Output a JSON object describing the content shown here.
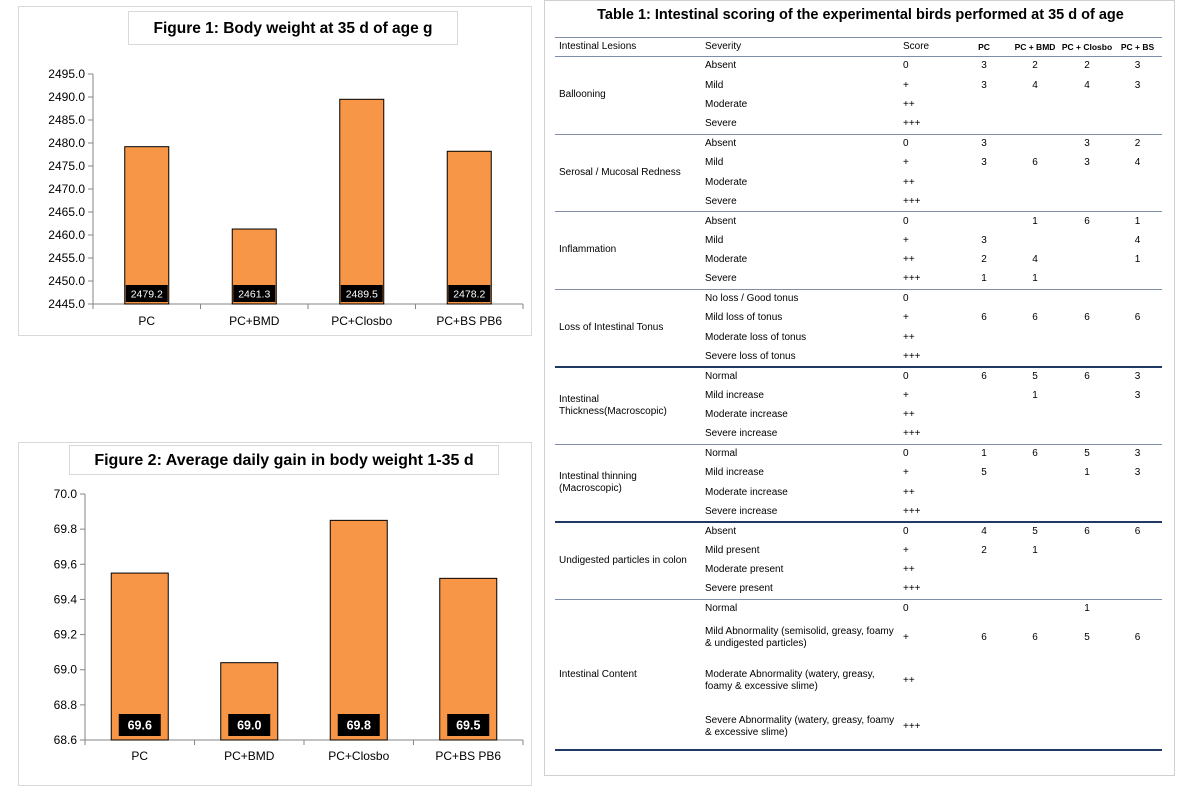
{
  "chart_data": [
    {
      "type": "bar",
      "title": "Figure 1: Body weight at 35 d of age g",
      "categories": [
        "PC",
        "PC+BMD",
        "PC+Closbo",
        "PC+BS PB6"
      ],
      "values": [
        2479.2,
        2461.3,
        2489.5,
        2478.2
      ],
      "data_labels": [
        "2479.2",
        "2461.3",
        "2489.5",
        "2478.2"
      ],
      "ylim": [
        2445.0,
        2495.0
      ],
      "yticks": [
        "2445.0",
        "2450.0",
        "2455.0",
        "2460.0",
        "2465.0",
        "2470.0",
        "2475.0",
        "2480.0",
        "2485.0",
        "2490.0",
        "2495.0"
      ],
      "xlabel": "",
      "ylabel": "",
      "bar_color": "#f79646",
      "grid": false,
      "legend": "none"
    },
    {
      "type": "bar",
      "title": "Figure 2: Average daily gain in body weight 1-35 d",
      "categories": [
        "PC",
        "PC+BMD",
        "PC+Closbo",
        "PC+BS PB6"
      ],
      "values": [
        69.55,
        69.04,
        69.85,
        69.52
      ],
      "data_labels": [
        "69.6",
        "69.0",
        "69.8",
        "69.5"
      ],
      "ylim": [
        68.6,
        70.0
      ],
      "yticks": [
        "68.6",
        "68.8",
        "69.0",
        "69.2",
        "69.4",
        "69.6",
        "69.8",
        "70.0"
      ],
      "xlabel": "",
      "ylabel": "",
      "bar_color": "#f79646",
      "grid": false,
      "legend": "none"
    }
  ],
  "table": {
    "title": "Table 1:  Intestinal scoring of the experimental birds performed at 35 d of age",
    "headers": [
      "Intestinal Lesions",
      "Severity",
      "Score",
      "PC",
      "PC + BMD",
      "PC + Closbo",
      "PC + BS"
    ],
    "groups": [
      {
        "lesion": "Ballooning",
        "rows": [
          {
            "severity": "Absent",
            "score": "0",
            "pc": "3",
            "bmd": "2",
            "closbo": "2",
            "bs": "3"
          },
          {
            "severity": "Mild",
            "score": "+",
            "pc": "3",
            "bmd": "4",
            "closbo": "4",
            "bs": "3"
          },
          {
            "severity": "Moderate",
            "score": "++",
            "pc": "",
            "bmd": "",
            "closbo": "",
            "bs": ""
          },
          {
            "severity": "Severe",
            "score": "+++",
            "pc": "",
            "bmd": "",
            "closbo": "",
            "bs": ""
          }
        ]
      },
      {
        "lesion": "Serosal / Mucosal Redness",
        "rows": [
          {
            "severity": "Absent",
            "score": "0",
            "pc": "3",
            "bmd": "",
            "closbo": "3",
            "bs": "2"
          },
          {
            "severity": "Mild",
            "score": "+",
            "pc": "3",
            "bmd": "6",
            "closbo": "3",
            "bs": "4"
          },
          {
            "severity": "Moderate",
            "score": "++",
            "pc": "",
            "bmd": "",
            "closbo": "",
            "bs": ""
          },
          {
            "severity": "Severe",
            "score": "+++",
            "pc": "",
            "bmd": "",
            "closbo": "",
            "bs": ""
          }
        ]
      },
      {
        "lesion": "Inflammation",
        "rows": [
          {
            "severity": "Absent",
            "score": "0",
            "pc": "",
            "bmd": "1",
            "closbo": "6",
            "bs": "1"
          },
          {
            "severity": "Mild",
            "score": "+",
            "pc": "3",
            "bmd": "",
            "closbo": "",
            "bs": "4"
          },
          {
            "severity": "Moderate",
            "score": "++",
            "pc": "2",
            "bmd": "4",
            "closbo": "",
            "bs": "1"
          },
          {
            "severity": "Severe",
            "score": "+++",
            "pc": "1",
            "bmd": "1",
            "closbo": "",
            "bs": ""
          }
        ]
      },
      {
        "lesion": "Loss of Intestinal Tonus",
        "rows": [
          {
            "severity": "No loss / Good tonus",
            "score": "0",
            "pc": "",
            "bmd": "",
            "closbo": "",
            "bs": ""
          },
          {
            "severity": "Mild loss of tonus",
            "score": "+",
            "pc": "6",
            "bmd": "6",
            "closbo": "6",
            "bs": "6"
          },
          {
            "severity": "Moderate loss of tonus",
            "score": "++",
            "pc": "",
            "bmd": "",
            "closbo": "",
            "bs": ""
          },
          {
            "severity": "Severe loss of tonus",
            "score": "+++",
            "pc": "",
            "bmd": "",
            "closbo": "",
            "bs": ""
          }
        ]
      },
      {
        "lesion": "Intestinal Thickness(Macroscopic)",
        "rows": [
          {
            "severity": "Normal",
            "score": "0",
            "pc": "6",
            "bmd": "5",
            "closbo": "6",
            "bs": "3"
          },
          {
            "severity": "Mild increase",
            "score": "+",
            "pc": "",
            "bmd": "1",
            "closbo": "",
            "bs": "3"
          },
          {
            "severity": "Moderate increase",
            "score": "++",
            "pc": "",
            "bmd": "",
            "closbo": "",
            "bs": ""
          },
          {
            "severity": "Severe increase",
            "score": "+++",
            "pc": "",
            "bmd": "",
            "closbo": "",
            "bs": ""
          }
        ]
      },
      {
        "lesion": "Intestinal thinning (Macroscopic)",
        "rows": [
          {
            "severity": "Normal",
            "score": "0",
            "pc": "1",
            "bmd": "6",
            "closbo": "5",
            "bs": "3"
          },
          {
            "severity": "Mild increase",
            "score": "+",
            "pc": "5",
            "bmd": "",
            "closbo": "1",
            "bs": "3"
          },
          {
            "severity": "Moderate increase",
            "score": "++",
            "pc": "",
            "bmd": "",
            "closbo": "",
            "bs": ""
          },
          {
            "severity": "Severe increase",
            "score": "+++",
            "pc": "",
            "bmd": "",
            "closbo": "",
            "bs": ""
          }
        ]
      },
      {
        "lesion": "Undigested particles in colon",
        "rows": [
          {
            "severity": "Absent",
            "score": "0",
            "pc": "4",
            "bmd": "5",
            "closbo": "6",
            "bs": "6"
          },
          {
            "severity": "Mild present",
            "score": "+",
            "pc": "2",
            "bmd": "1",
            "closbo": "",
            "bs": ""
          },
          {
            "severity": "Moderate present",
            "score": "++",
            "pc": "",
            "bmd": "",
            "closbo": "",
            "bs": ""
          },
          {
            "severity": "Severe present",
            "score": "+++",
            "pc": "",
            "bmd": "",
            "closbo": "",
            "bs": ""
          }
        ]
      },
      {
        "lesion": "Intestinal Content",
        "rows": [
          {
            "severity": "Normal",
            "score": "0",
            "pc": "",
            "bmd": "",
            "closbo": "1",
            "bs": ""
          },
          {
            "severity": "Mild Abnormality (semisolid, greasy, foamy & undigested particles)",
            "score": "+",
            "pc": "6",
            "bmd": "6",
            "closbo": "5",
            "bs": "6"
          },
          {
            "severity": "Moderate Abnormality (watery, greasy, foamy & excessive slime)",
            "score": "++",
            "pc": "",
            "bmd": "",
            "closbo": "",
            "bs": ""
          },
          {
            "severity": "Severe Abnormality (watery, greasy, foamy & excessive slime)",
            "score": "+++",
            "pc": "",
            "bmd": "",
            "closbo": "",
            "bs": ""
          }
        ]
      }
    ]
  }
}
